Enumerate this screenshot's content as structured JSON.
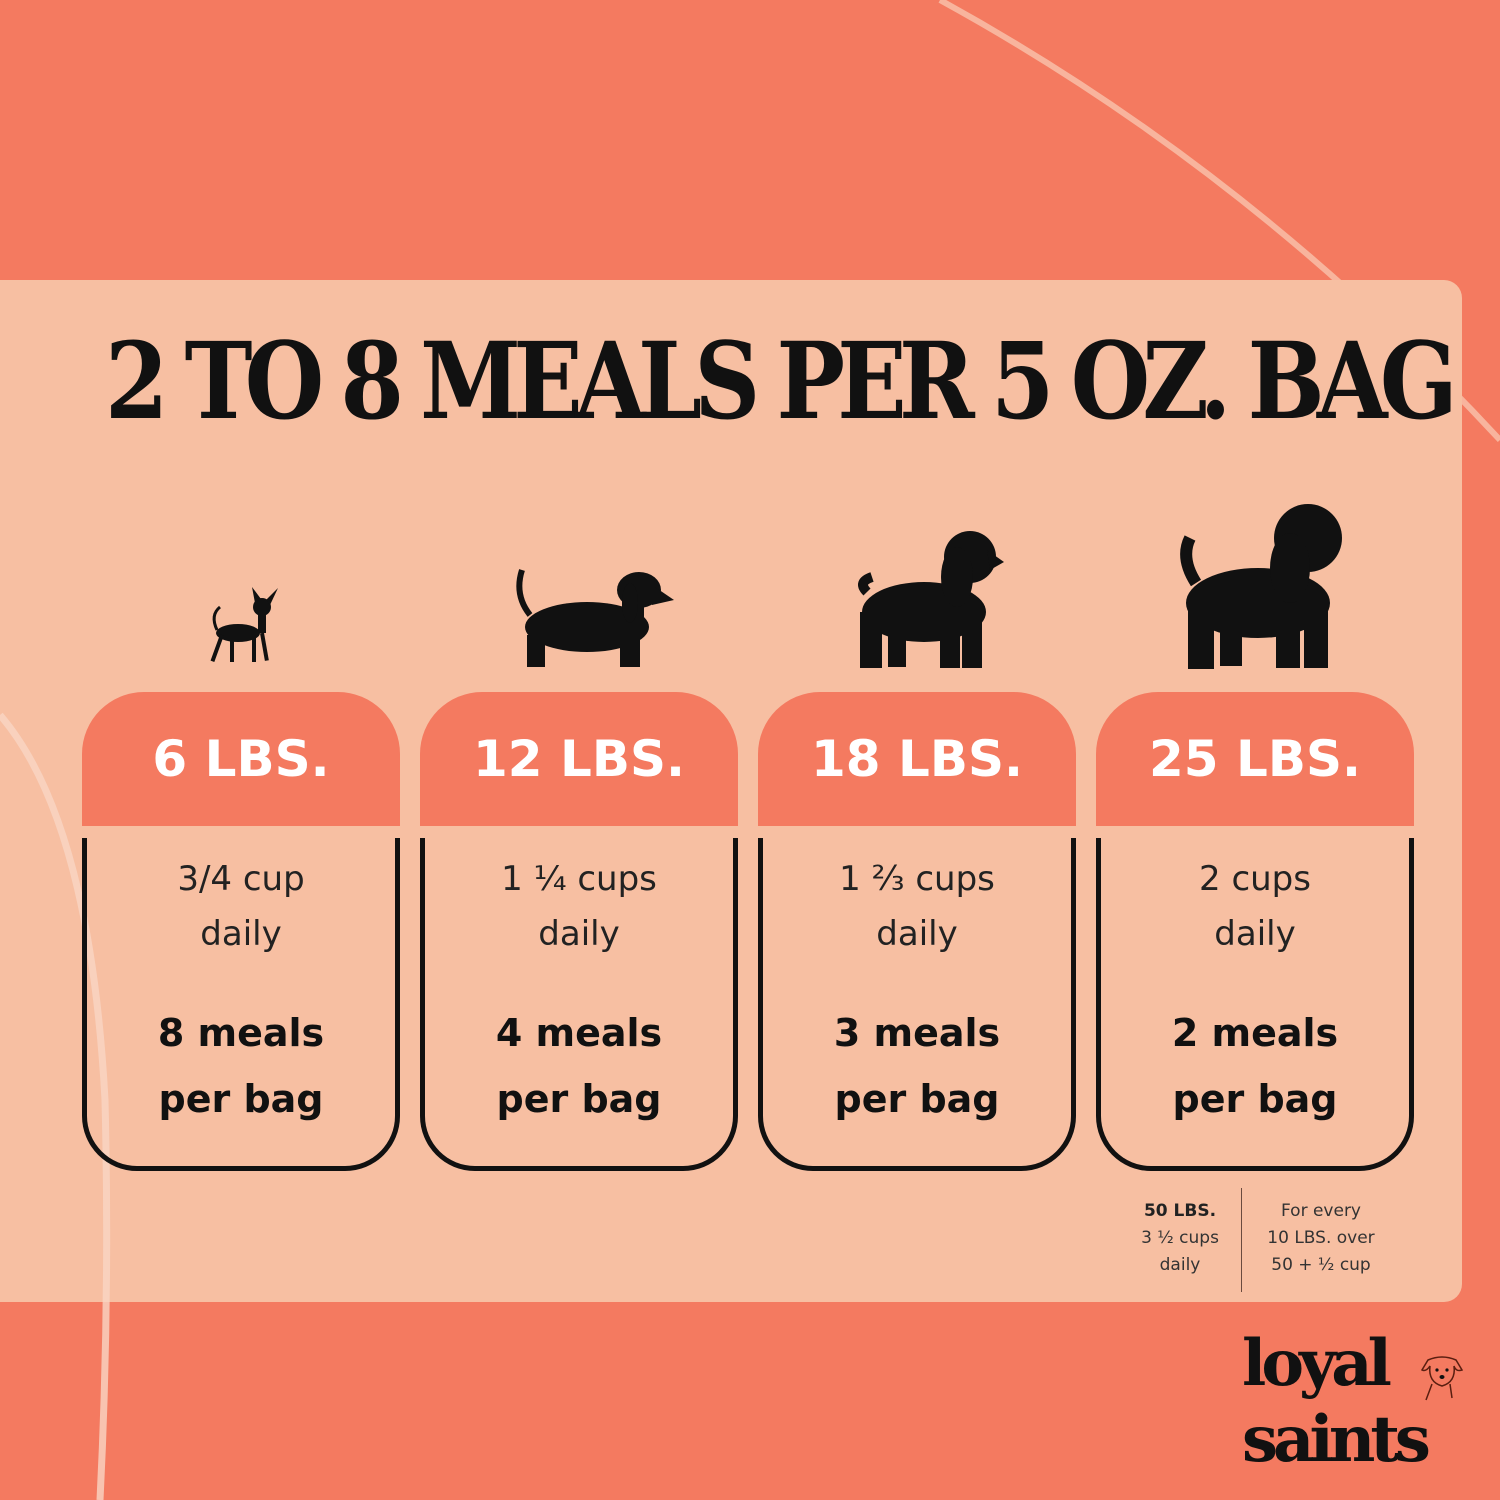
{
  "colors": {
    "background": "#F47A60",
    "panel": "#F7BFA2",
    "header": "#F47A60",
    "text": "#111111"
  },
  "title": "2 TO 8 MEALS PER 5 OZ. BAG",
  "cards": [
    {
      "weight": "6 LBS.",
      "amount": "3/4 cup",
      "amount_unit": "daily",
      "meals": "8 meals",
      "meals_unit": "per bag",
      "icon": "chihuahua-icon"
    },
    {
      "weight": "12 LBS.",
      "amount": "1 ¼ cups",
      "amount_unit": "daily",
      "meals": "4 meals",
      "meals_unit": "per bag",
      "icon": "dachshund-icon"
    },
    {
      "weight": "18 LBS.",
      "amount": "1 ⅔ cups",
      "amount_unit": "daily",
      "meals": "3 meals",
      "meals_unit": "per bag",
      "icon": "spaniel-icon"
    },
    {
      "weight": "25 LBS.",
      "amount": "2 cups",
      "amount_unit": "daily",
      "meals": "2 meals",
      "meals_unit": "per bag",
      "icon": "poodle-icon"
    }
  ],
  "footnote": {
    "left": {
      "weight": "50 LBS.",
      "amount": "3 ½ cups",
      "unit": "daily"
    },
    "right": {
      "line1": "For every",
      "line2": "10 LBS. over",
      "line3": "50 + ½ cup"
    }
  },
  "logo": {
    "line1": "loyal",
    "line2": "saints"
  }
}
